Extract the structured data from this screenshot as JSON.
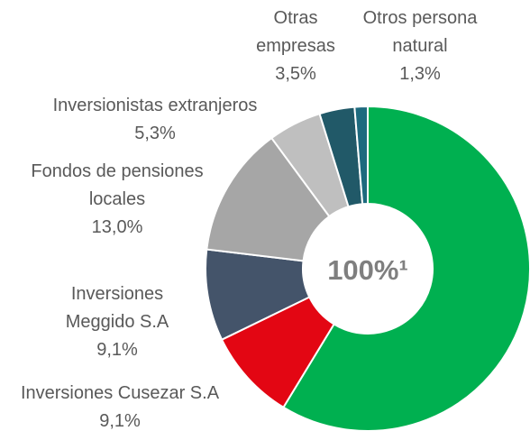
{
  "chart_data": {
    "type": "donut",
    "center_label": "100%¹",
    "categories": [
      null,
      "Inversiones Cusezar S.A",
      "Inversiones Meggido S.A",
      "Fondos de pensiones locales",
      "Inversionistas extranjeros",
      "Otras empresas",
      "Otros persona natural"
    ],
    "values": [
      58.7,
      9.1,
      9.1,
      13.0,
      5.3,
      3.5,
      1.3
    ],
    "value_labels": [
      null,
      "9,1%",
      "9,1%",
      "13,0%",
      "5,3%",
      "3,5%",
      "1,3%"
    ],
    "colors": [
      "#00b050",
      "#e30613",
      "#44546a",
      "#a6a6a6",
      "#bfbfbf",
      "#215968",
      "#1d6a7e"
    ]
  }
}
